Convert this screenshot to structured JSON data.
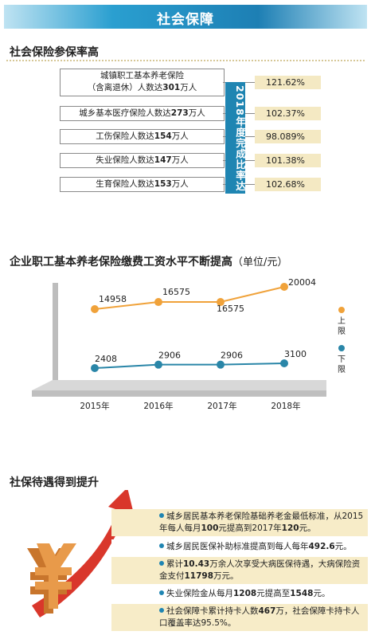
{
  "banner": {
    "title": "社会保障"
  },
  "section1": {
    "title": "社会保险参保率高",
    "items": [
      {
        "line1": "城镇职工基本养老保险",
        "line2_pre": "（含离退休）人数达",
        "line2_num": "301",
        "line2_post": "万人",
        "rate": "121.62%"
      },
      {
        "pre": "城乡基本医疗保险人数达",
        "num": "273",
        "post": "万人",
        "rate": "102.37%"
      },
      {
        "pre": "工伤保险人数达",
        "num": "154",
        "post": "万人",
        "rate": "98.089%"
      },
      {
        "pre": "失业保险人数达",
        "num": "147",
        "post": "万人",
        "rate": "101.38%"
      },
      {
        "pre": "生育保险人数达",
        "num": "153",
        "post": "万人",
        "rate": "102.68%"
      }
    ],
    "vertical_label": "2018年度完成比率达"
  },
  "section2": {
    "title": "企业职工基本养老保险缴费工资水平不断提高",
    "unit": "（单位/元）"
  },
  "chart_data": {
    "type": "line",
    "title": "企业职工基本养老保险缴费工资水平不断提高",
    "unit": "（单位/元）",
    "categories": [
      "2015年",
      "2016年",
      "2017年",
      "2018年"
    ],
    "series": [
      {
        "name": "上限",
        "values": [
          14958,
          16575,
          16575,
          20004
        ],
        "color": "#f0a23a"
      },
      {
        "name": "下限",
        "values": [
          2408,
          2906,
          2906,
          3100
        ],
        "color": "#2a86a8"
      }
    ],
    "legend": [
      "上限",
      "下限"
    ],
    "legend_position": "right"
  },
  "section3": {
    "title": "社保待遇得到提升",
    "items": [
      {
        "p1": "城乡居民基本养老保险基础养老金最低标准，从2015年每人每月",
        "n1": "100",
        "p2": "元提高到2017年",
        "n2": "120",
        "p3": "元。"
      },
      {
        "p1": "城乡居民医保补助标准提高到每人每年",
        "n1": "492.6",
        "p2": "元。"
      },
      {
        "p1": "累计",
        "n1": "10.43",
        "p2": "万余人次享受大病医保待遇，大病保险资金支付",
        "n2": "11798",
        "p3": "万元。"
      },
      {
        "p1": "失业保险金从每月",
        "n1": "1208",
        "p2": "元提高至",
        "n2": "1548",
        "p3": "元。"
      },
      {
        "p1": "社会保障卡累计持卡人数",
        "n1": "467",
        "p2": "万，社会保障卡持卡人口覆盖率达95.5%。"
      }
    ]
  }
}
